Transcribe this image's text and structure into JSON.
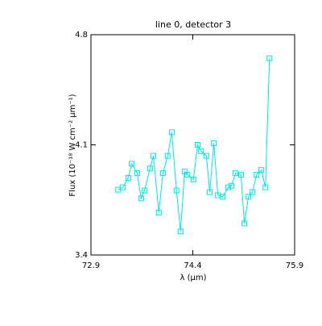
{
  "chart_data": {
    "type": "line",
    "title": "line 0, detector 3",
    "x_label": "λ (μm)",
    "y_label": "Flux (10⁻¹⁸ W cm⁻² μm⁻¹)",
    "x": [
      73.3,
      73.37,
      73.45,
      73.5,
      73.58,
      73.64,
      73.69,
      73.77,
      73.82,
      73.9,
      73.96,
      74.03,
      74.09,
      74.16,
      74.22,
      74.28,
      74.32,
      74.41,
      74.47,
      74.52,
      74.6,
      74.65,
      74.71,
      74.77,
      74.84,
      74.92,
      74.97,
      75.03,
      75.11,
      75.16,
      75.22,
      75.28,
      75.34,
      75.41,
      75.47,
      75.53
    ],
    "series": [
      {
        "name": "line 0",
        "color": "#00e5e5",
        "values": [
          3.815,
          3.83,
          3.89,
          3.98,
          3.92,
          3.76,
          3.81,
          3.95,
          4.03,
          3.67,
          3.92,
          4.03,
          4.18,
          3.81,
          3.55,
          3.93,
          3.91,
          3.88,
          4.1,
          4.06,
          4.03,
          3.8,
          4.11,
          3.78,
          3.77,
          3.83,
          3.84,
          3.92,
          3.91,
          3.6,
          3.77,
          3.8,
          3.91,
          3.94,
          3.83,
          4.65
        ]
      }
    ],
    "xlim": [
      72.9,
      75.9
    ],
    "xticks": [
      72.9,
      74.4,
      75.9
    ],
    "ylim": [
      3.4,
      4.8
    ],
    "yticks": [
      3.4,
      4.1,
      4.8
    ],
    "grid": false
  }
}
